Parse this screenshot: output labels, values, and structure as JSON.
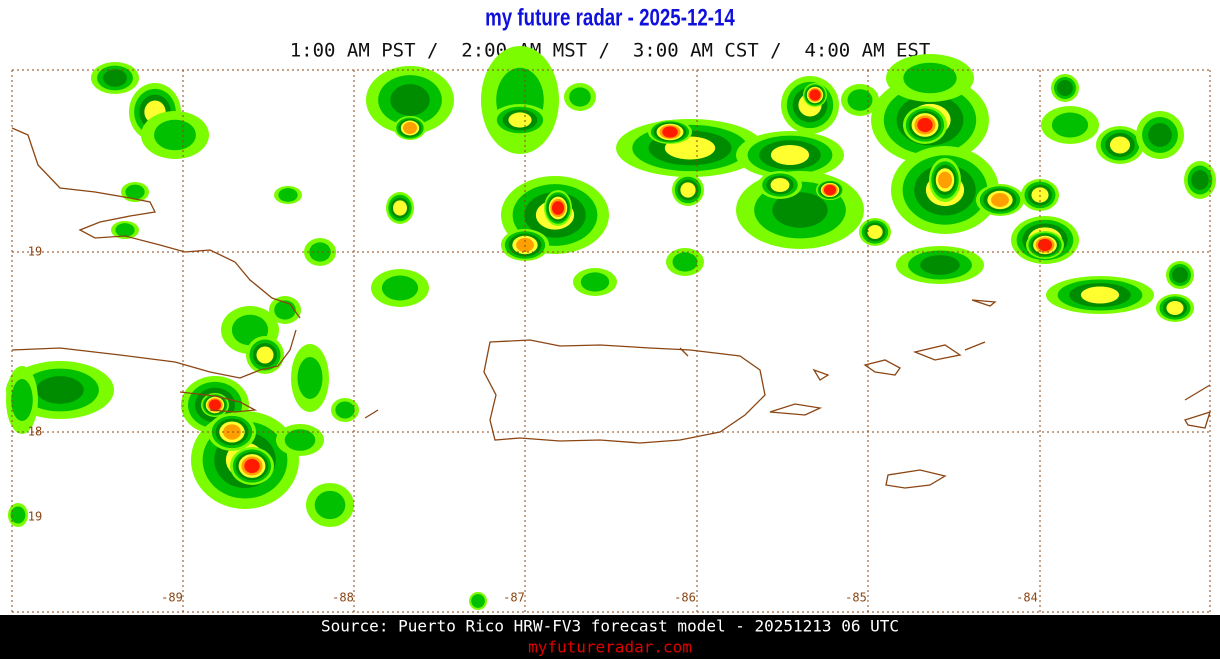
{
  "header": {
    "title": "my future radar - 2025-12-14",
    "times": "1:00 AM PST /  2:00 AM MST /  3:00 AM CST /  4:00 AM EST"
  },
  "map": {
    "lat_labels": [
      "19",
      "18",
      "19"
    ],
    "lon_labels": [
      "-89",
      "-88",
      "-87",
      "-86",
      "-85",
      "-84"
    ]
  },
  "footer": {
    "source": "Source: Puerto Rico HRW-FV3 forecast model - 20251213 06 UTC",
    "site": "myfutureradar.com"
  }
}
